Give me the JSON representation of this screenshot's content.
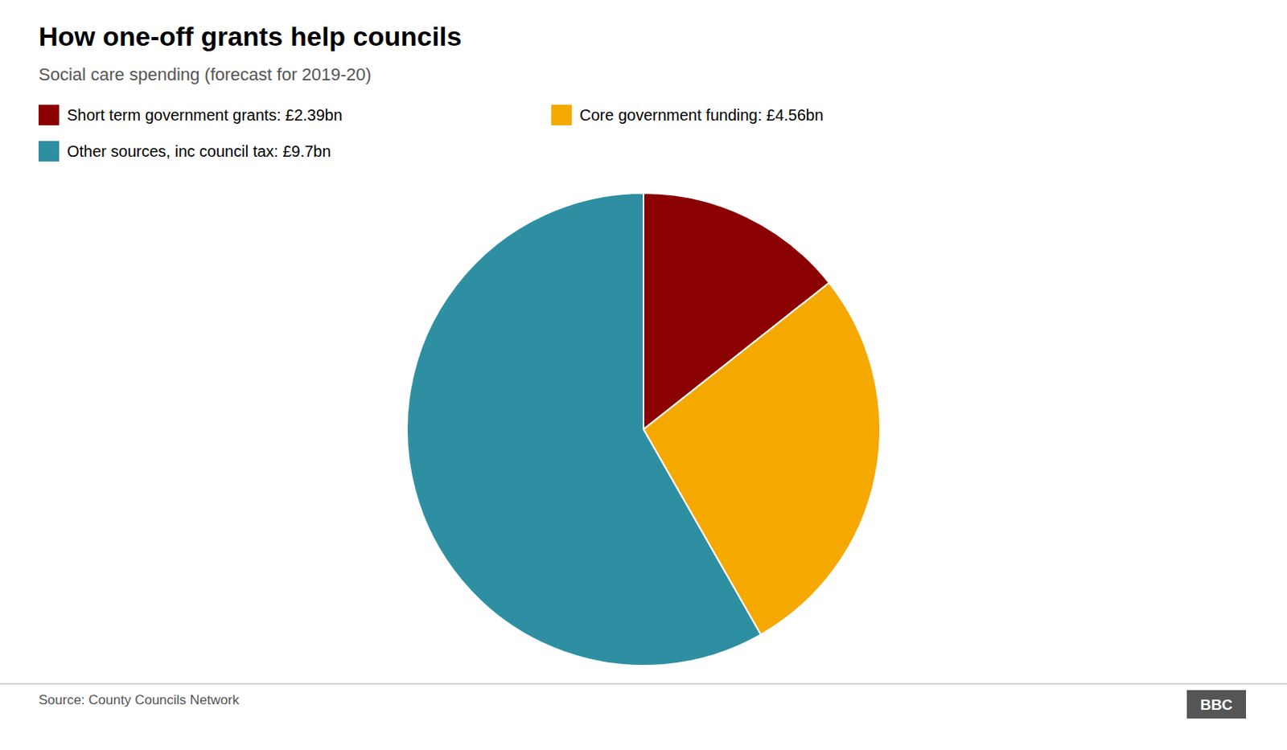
{
  "chart_data": {
    "type": "pie",
    "title": "How one-off grants help councils",
    "subtitle": "Social care spending (forecast for 2019-20)",
    "categories": [
      "Short term government grants: £2.39bn",
      "Core government funding: £4.56bn",
      "Other sources, inc council tax: £9.7bn"
    ],
    "values": [
      2.39,
      4.56,
      9.7
    ],
    "colors": [
      "#8B0000",
      "#F5A800",
      "#2E8FA3"
    ],
    "legend": "top-left",
    "source": "Source: County Councils Network",
    "annotations": [
      "BBC"
    ]
  }
}
